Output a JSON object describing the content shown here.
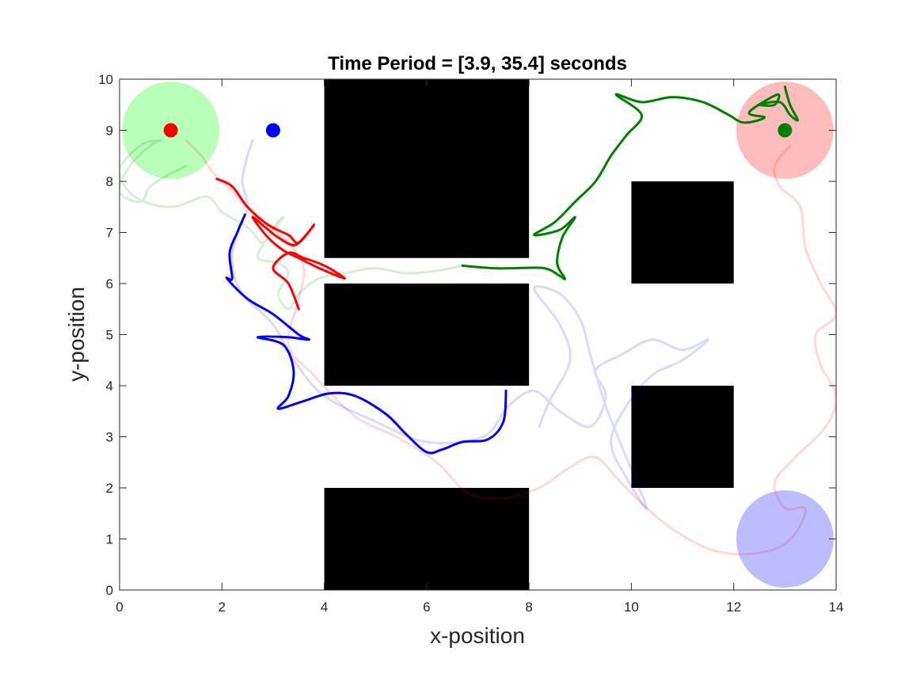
{
  "chart_data": {
    "type": "line",
    "title": "Time Period = [3.9, 35.4] seconds",
    "xlabel": "x-position",
    "ylabel": "y-position",
    "xlim": [
      0,
      14
    ],
    "ylim": [
      0,
      10
    ],
    "xticks": [
      "0",
      "2",
      "4",
      "6",
      "8",
      "10",
      "12",
      "14"
    ],
    "yticks": [
      "0",
      "1",
      "2",
      "3",
      "4",
      "5",
      "6",
      "7",
      "8",
      "9",
      "10"
    ],
    "grid": false,
    "legend": "none",
    "obstacles": [
      {
        "x0": 4,
        "y0": 6.5,
        "x1": 8,
        "y1": 10
      },
      {
        "x0": 4,
        "y0": 4,
        "x1": 8,
        "y1": 6
      },
      {
        "x0": 4,
        "y0": 0,
        "x1": 8,
        "y1": 2
      },
      {
        "x0": 10,
        "y0": 6,
        "x1": 12,
        "y1": 8
      },
      {
        "x0": 10,
        "y0": 2,
        "x1": 12,
        "y1": 4
      }
    ],
    "goal_regions": [
      {
        "cx": 1,
        "cy": 9,
        "r": 0.95,
        "color": "#b9ffb9"
      },
      {
        "cx": 13,
        "cy": 9,
        "r": 0.95,
        "color": "#ffbcbc"
      },
      {
        "cx": 13,
        "cy": 1,
        "r": 0.95,
        "color": "#bcbcff"
      }
    ],
    "agents": [
      {
        "cx": 1,
        "cy": 9,
        "color": "#ff0000"
      },
      {
        "cx": 3,
        "cy": 9,
        "color": "#0000ff"
      },
      {
        "cx": 13,
        "cy": 9,
        "color": "#007f00"
      }
    ],
    "series": [
      {
        "color": "#ff0000",
        "points": [
          [
            1.9,
            8.05
          ],
          [
            2.2,
            7.9
          ],
          [
            2.5,
            7.5
          ],
          [
            2.9,
            7.15
          ],
          [
            3.3,
            6.95
          ],
          [
            3.5,
            6.8
          ],
          [
            3.8,
            7.15
          ],
          [
            3.6,
            6.9
          ],
          [
            3.4,
            6.75
          ],
          [
            3.1,
            6.9
          ],
          [
            2.85,
            7.1
          ],
          [
            2.6,
            7.3
          ],
          [
            2.9,
            6.9
          ],
          [
            3.2,
            6.65
          ],
          [
            3.5,
            6.5
          ],
          [
            3.9,
            6.3
          ],
          [
            4.4,
            6.1
          ],
          [
            4.0,
            6.35
          ],
          [
            3.6,
            6.5
          ],
          [
            3.3,
            6.6
          ],
          [
            3.0,
            6.3
          ],
          [
            3.3,
            6.0
          ],
          [
            3.5,
            5.5
          ]
        ]
      },
      {
        "color": "#0000ff",
        "points": [
          [
            2.45,
            7.35
          ],
          [
            2.3,
            7.0
          ],
          [
            2.15,
            6.6
          ],
          [
            2.2,
            6.1
          ],
          [
            2.1,
            6.1
          ],
          [
            2.5,
            5.7
          ],
          [
            3.0,
            5.4
          ],
          [
            3.5,
            5.0
          ],
          [
            3.7,
            4.9
          ],
          [
            3.3,
            4.95
          ],
          [
            2.7,
            4.95
          ],
          [
            3.2,
            4.8
          ],
          [
            3.4,
            4.3
          ],
          [
            3.3,
            3.8
          ],
          [
            3.1,
            3.55
          ],
          [
            3.6,
            3.7
          ],
          [
            4.1,
            3.85
          ],
          [
            4.6,
            3.8
          ],
          [
            5.2,
            3.45
          ],
          [
            5.6,
            3.05
          ],
          [
            6.0,
            2.7
          ],
          [
            6.3,
            2.75
          ],
          [
            6.7,
            2.9
          ],
          [
            7.2,
            2.95
          ],
          [
            7.5,
            3.3
          ],
          [
            7.55,
            3.9
          ]
        ]
      },
      {
        "color": "#007f00",
        "points": [
          [
            6.7,
            6.35
          ],
          [
            7.3,
            6.3
          ],
          [
            7.7,
            6.3
          ],
          [
            8.3,
            6.3
          ],
          [
            8.6,
            6.15
          ],
          [
            8.7,
            6.1
          ],
          [
            8.55,
            6.4
          ],
          [
            8.65,
            6.9
          ],
          [
            8.9,
            7.3
          ],
          [
            8.6,
            7.05
          ],
          [
            8.1,
            6.95
          ],
          [
            8.5,
            7.2
          ],
          [
            8.9,
            7.6
          ],
          [
            9.3,
            8.0
          ],
          [
            9.6,
            8.5
          ],
          [
            9.9,
            8.9
          ],
          [
            10.2,
            9.3
          ],
          [
            9.7,
            9.7
          ],
          [
            10.2,
            9.55
          ],
          [
            10.8,
            9.65
          ],
          [
            11.4,
            9.55
          ],
          [
            11.9,
            9.3
          ],
          [
            12.2,
            9.15
          ],
          [
            12.6,
            9.25
          ],
          [
            12.3,
            9.35
          ],
          [
            12.85,
            9.7
          ],
          [
            12.8,
            9.5
          ],
          [
            12.5,
            9.5
          ],
          [
            12.9,
            9.55
          ],
          [
            13.1,
            9.3
          ],
          [
            13.25,
            9.2
          ],
          [
            13.1,
            9.5
          ],
          [
            13.0,
            9.85
          ]
        ]
      }
    ],
    "trails": [
      {
        "color": "#ff0000",
        "opacity": 0.15,
        "points": [
          [
            1.3,
            8.8
          ],
          [
            1.6,
            8.5
          ],
          [
            1.8,
            8.2
          ],
          [
            2.2,
            7.8
          ],
          [
            2.7,
            7.3
          ],
          [
            3.3,
            6.8
          ],
          [
            3.6,
            6.3
          ],
          [
            3.5,
            5.7
          ],
          [
            3.3,
            4.8
          ],
          [
            3.8,
            4.2
          ],
          [
            4.6,
            3.4
          ],
          [
            5.4,
            3.0
          ],
          [
            6.2,
            2.5
          ],
          [
            6.8,
            1.9
          ],
          [
            7.5,
            1.8
          ],
          [
            8.2,
            2.0
          ],
          [
            8.8,
            2.4
          ],
          [
            9.3,
            2.6
          ],
          [
            9.8,
            2.1
          ],
          [
            10.3,
            1.6
          ],
          [
            10.8,
            1.2
          ],
          [
            11.3,
            0.9
          ],
          [
            11.7,
            0.75
          ],
          [
            12.2,
            0.7
          ],
          [
            12.8,
            0.8
          ],
          [
            13.2,
            1.1
          ],
          [
            13.4,
            1.6
          ],
          [
            13.0,
            1.6
          ],
          [
            12.8,
            2.1
          ],
          [
            13.2,
            2.6
          ],
          [
            13.8,
            3.2
          ],
          [
            14.0,
            3.8
          ],
          [
            13.7,
            4.4
          ],
          [
            13.6,
            5.0
          ],
          [
            14.0,
            5.4
          ],
          [
            13.7,
            6.0
          ],
          [
            13.4,
            6.7
          ],
          [
            13.3,
            7.5
          ],
          [
            12.9,
            7.9
          ],
          [
            12.8,
            8.3
          ],
          [
            13.1,
            8.7
          ]
        ]
      },
      {
        "color": "#0000ff",
        "opacity": 0.15,
        "points": [
          [
            2.6,
            8.8
          ],
          [
            2.5,
            8.5
          ],
          [
            2.4,
            8.0
          ],
          [
            2.5,
            7.5
          ],
          [
            2.3,
            7.0
          ],
          [
            2.2,
            6.4
          ],
          [
            2.4,
            5.8
          ],
          [
            3.0,
            5.2
          ],
          [
            3.4,
            4.5
          ],
          [
            4.0,
            3.8
          ],
          [
            5.0,
            3.3
          ],
          [
            6.0,
            2.9
          ],
          [
            7.1,
            3.0
          ],
          [
            7.6,
            3.6
          ],
          [
            8.1,
            3.9
          ],
          [
            8.6,
            3.5
          ],
          [
            9.2,
            3.2
          ],
          [
            9.5,
            3.8
          ],
          [
            9.3,
            4.3
          ],
          [
            9.8,
            4.6
          ],
          [
            10.4,
            4.9
          ],
          [
            11.0,
            4.7
          ],
          [
            11.5,
            4.9
          ],
          [
            11.0,
            4.5
          ],
          [
            10.4,
            4.2
          ],
          [
            9.9,
            3.6
          ],
          [
            9.6,
            2.9
          ],
          [
            9.9,
            2.2
          ],
          [
            10.3,
            1.6
          ],
          [
            9.9,
            2.6
          ],
          [
            9.5,
            3.6
          ],
          [
            9.2,
            4.6
          ],
          [
            9.0,
            5.3
          ],
          [
            8.6,
            5.8
          ],
          [
            8.1,
            5.9
          ],
          [
            8.6,
            5.2
          ],
          [
            8.8,
            4.5
          ],
          [
            8.4,
            3.7
          ],
          [
            8.2,
            3.2
          ]
        ]
      },
      {
        "color": "#007f00",
        "opacity": 0.15,
        "points": [
          [
            1.3,
            8.3
          ],
          [
            0.9,
            8.1
          ],
          [
            0.6,
            7.9
          ],
          [
            0.4,
            7.6
          ],
          [
            0.0,
            7.8
          ],
          [
            0.2,
            8.3
          ],
          [
            0.6,
            8.7
          ],
          [
            0.8,
            8.8
          ],
          [
            0.4,
            8.7
          ],
          [
            0.0,
            8.2
          ],
          [
            0.3,
            7.7
          ],
          [
            1.0,
            7.5
          ],
          [
            1.7,
            7.7
          ],
          [
            2.0,
            7.4
          ],
          [
            2.5,
            7.1
          ],
          [
            2.8,
            6.8
          ],
          [
            3.0,
            7.1
          ],
          [
            3.2,
            7.3
          ],
          [
            2.9,
            6.9
          ],
          [
            2.7,
            6.5
          ],
          [
            3.1,
            6.4
          ],
          [
            3.3,
            6.2
          ],
          [
            3.1,
            5.8
          ],
          [
            3.3,
            5.5
          ],
          [
            3.5,
            5.8
          ],
          [
            3.9,
            6.1
          ],
          [
            4.4,
            6.2
          ],
          [
            5.0,
            6.3
          ],
          [
            5.6,
            6.2
          ],
          [
            6.2,
            6.25
          ],
          [
            6.7,
            6.35
          ]
        ]
      }
    ]
  }
}
